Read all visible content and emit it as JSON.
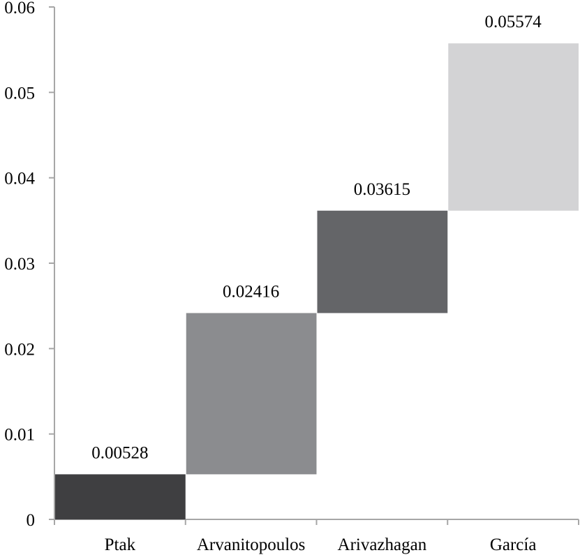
{
  "chart_data": {
    "type": "bar",
    "subtype": "waterfall",
    "title": "",
    "xlabel": "",
    "ylabel": "",
    "ylim": [
      0,
      0.06
    ],
    "yticks": [
      "0",
      "0.01",
      "0.02",
      "0.03",
      "0.04",
      "0.05",
      "0.06"
    ],
    "grid": false,
    "legend": "none",
    "categories": [
      "Ptak",
      "Arvanitopoulos",
      "Arivazhagan",
      "García"
    ],
    "ranges": [
      [
        0,
        0.00528
      ],
      [
        0.00528,
        0.02416
      ],
      [
        0.02416,
        0.03615
      ],
      [
        0.03615,
        0.05574
      ]
    ],
    "values": [
      0.00528,
      0.02416,
      0.03615,
      0.05574
    ],
    "data_labels": [
      "0.00528",
      "0.02416",
      "0.03615",
      "0.05574"
    ],
    "colors": [
      "#3f3f41",
      "#8b8c8f",
      "#646568",
      "#d3d3d5"
    ]
  }
}
